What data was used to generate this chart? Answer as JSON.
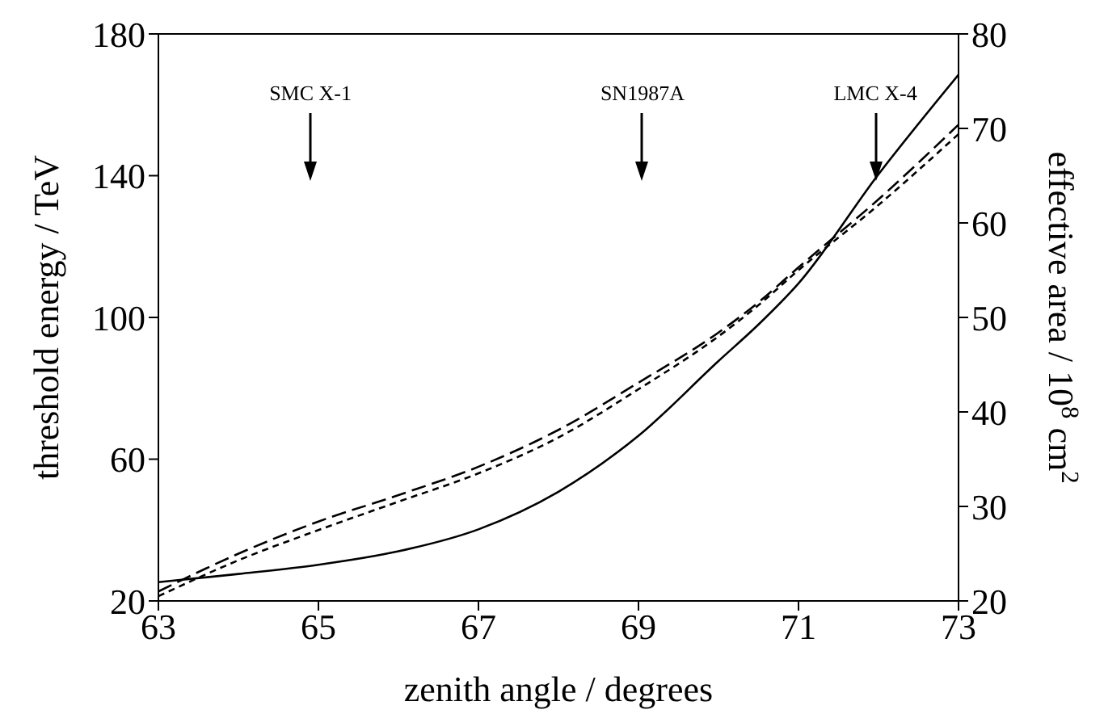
{
  "chart_data": {
    "type": "line",
    "xlabel": "zenith angle / degrees",
    "ylabel": "threshold energy / TeV",
    "y2label": "effective area / 10$^{8}$ cm$^{2}$",
    "x": [
      63,
      64,
      65,
      66,
      67,
      68,
      69,
      70,
      70.5,
      71,
      72,
      73
    ],
    "series": [
      {
        "color": "#000000",
        "line_style": "solid",
        "values": [
          25.3,
          27.6,
          30.2,
          34,
          40.2,
          50.8,
          66.6,
          87.7,
          98,
          109.6,
          140.4,
          168.5
        ]
      },
      {
        "color": "#000000",
        "line_style": "dashed",
        "axis": "y2",
        "values": [
          21,
          25.0,
          28.4,
          31.2,
          34.2,
          38.1,
          43.1,
          48.4,
          51.6,
          55.3,
          62.5,
          70.4
        ]
      },
      {
        "color": "#000000",
        "line_style": "dotted",
        "axis": "y2",
        "values": [
          20.5,
          24.3,
          27.5,
          30.5,
          33.5,
          37.3,
          42.4,
          48,
          51.3,
          55,
          61.9,
          69.4
        ]
      }
    ],
    "xlim": [
      63,
      73
    ],
    "xticks": [
      63,
      65,
      67,
      69,
      71,
      73
    ],
    "ylim": [
      20,
      180
    ],
    "yticks": [
      20,
      60,
      100,
      140,
      180
    ],
    "y2lim": [
      20,
      80
    ],
    "y2ticks": [
      20,
      30,
      40,
      50,
      60,
      70,
      80
    ],
    "annotations": [
      "SMC X-1",
      "SN1987A",
      "LMC X-4"
    ],
    "marker": "none"
  }
}
